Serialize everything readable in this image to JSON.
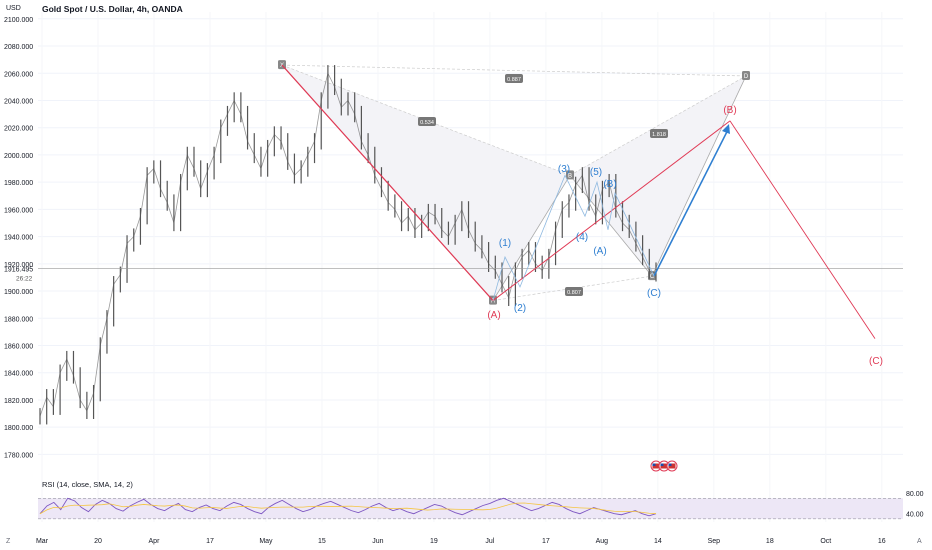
{
  "header": {
    "title": "Gold Spot / U.S. Dollar, 4h, OANDA",
    "currency": "USD"
  },
  "colors": {
    "background": "#ffffff",
    "candle": "#555555",
    "wave_red": "#e03a55",
    "wave_blue": "#2f7fd1",
    "pattern_line": "#aaaaaa",
    "rsi_line": "#7e57c2",
    "rsi_band": "#ede7f6",
    "rsi_sma": "#f5c542"
  },
  "chart_data": {
    "type": "line",
    "y_ticks": [
      "2100.000",
      "2080.000",
      "2060.000",
      "2040.000",
      "2020.000",
      "2000.000",
      "1980.000",
      "1960.000",
      "1940.000",
      "1920.000",
      "1900.000",
      "1880.000",
      "1860.000",
      "1840.000",
      "1820.000",
      "1800.000",
      "1780.000"
    ],
    "ylim": [
      1770,
      2105
    ],
    "x_ticks": [
      "Mar",
      "20",
      "Apr",
      "17",
      "May",
      "15",
      "Jun",
      "19",
      "Jul",
      "17",
      "Aug",
      "14",
      "Sep",
      "18",
      "Oct",
      "16"
    ],
    "price_label": "1916.495",
    "countdown_label": "26:22",
    "price_series": [
      1808,
      1822,
      1815,
      1840,
      1850,
      1838,
      1820,
      1812,
      1825,
      1860,
      1880,
      1905,
      1912,
      1935,
      1940,
      1955,
      1985,
      1990,
      1975,
      1965,
      1950,
      1980,
      2000,
      1990,
      1975,
      1988,
      2000,
      2020,
      2030,
      2040,
      2030,
      2010,
      2000,
      1990,
      2005,
      2015,
      2010,
      1995,
      1985,
      1990,
      2000,
      2010,
      2040,
      2060,
      2050,
      2035,
      2040,
      2030,
      2010,
      2000,
      1985,
      1975,
      1965,
      1960,
      1950,
      1955,
      1945,
      1950,
      1958,
      1955,
      1945,
      1940,
      1950,
      1960,
      1945,
      1935,
      1930,
      1920,
      1915,
      1905,
      1895,
      1915,
      1925,
      1930,
      1920,
      1915,
      1925,
      1945,
      1960,
      1965,
      1978,
      1985,
      1965,
      1955,
      1975,
      1980,
      1960,
      1950,
      1945,
      1935,
      1925,
      1915,
      1913
    ],
    "harmonic_pattern": {
      "points": [
        {
          "label": "X",
          "value": 2066
        },
        {
          "label": "A",
          "value": 1893
        },
        {
          "label": "B",
          "value": 1985
        },
        {
          "label": "C",
          "value": 1911
        },
        {
          "label": "D",
          "value": 2058
        }
      ],
      "ratios": [
        "0.887",
        "0.534",
        "1.818",
        "0.807"
      ]
    },
    "wave_labels_red": [
      "(A)",
      "(B)",
      "(C)"
    ],
    "wave_labels_blue": [
      "(1)",
      "(2)",
      "(3)",
      "(4)",
      "(5)",
      "(A)",
      "(B)",
      "(C)"
    ],
    "projection": {
      "b_target": 2025,
      "c_target": 1865
    },
    "rsi": {
      "label": "RSI (14, close, SMA, 14, 2)",
      "ticks": [
        "80.00",
        "40.00"
      ],
      "upper": 70,
      "lower": 30,
      "values": [
        40,
        55,
        62,
        48,
        70,
        65,
        52,
        44,
        58,
        66,
        60,
        50,
        45,
        55,
        62,
        68,
        58,
        50,
        46,
        54,
        60,
        48,
        44,
        52,
        57,
        50,
        46,
        55,
        62,
        58,
        50,
        44,
        40,
        52,
        60,
        66,
        58,
        50,
        44,
        48,
        55,
        60,
        64,
        58,
        52,
        46,
        42,
        48,
        55,
        60,
        52,
        46,
        50,
        44,
        40,
        46,
        52,
        58,
        55,
        48,
        42,
        38,
        44,
        50,
        56,
        60,
        66,
        70,
        64,
        58,
        52,
        46,
        50,
        56,
        62,
        58,
        50,
        44,
        40,
        46,
        52,
        48,
        44,
        40,
        38,
        42,
        46,
        40,
        36,
        40
      ]
    }
  },
  "corner_labels": {
    "left": "Z",
    "right": "A"
  }
}
